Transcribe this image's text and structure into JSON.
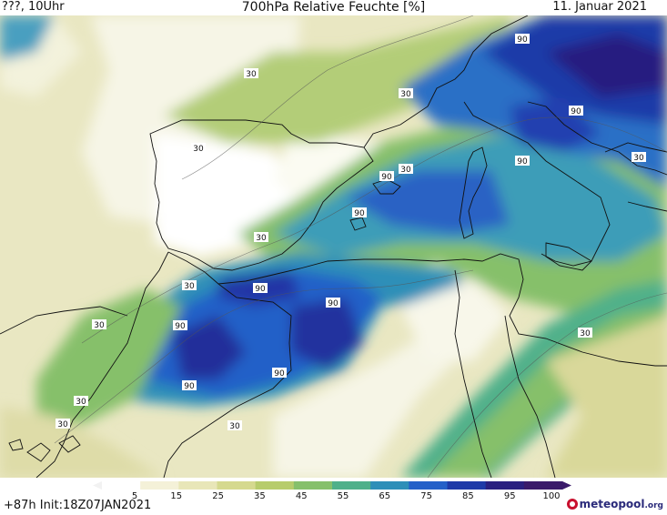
{
  "header": {
    "left": "???, 10Uhr",
    "title": "700hPa Relative Feuchte [%]",
    "date": "11. Januar 2021"
  },
  "footer": {
    "init": "+87h Init:18Z07JAN2021",
    "logo": "meteopool",
    "logo_suffix": ".org"
  },
  "colorbar": {
    "ticks": [
      "5",
      "15",
      "25",
      "35",
      "45",
      "55",
      "65",
      "75",
      "85",
      "95",
      "100"
    ],
    "colors": [
      "#ffffff",
      "#f4f1d8",
      "#e8e6b8",
      "#d5d98f",
      "#b7cc6c",
      "#86c06b",
      "#4fb08a",
      "#2e8fb8",
      "#2460c8",
      "#1e3aa8",
      "#2a2080",
      "#3a1a6a"
    ]
  },
  "contour_labels": [
    "30",
    "90"
  ]
}
